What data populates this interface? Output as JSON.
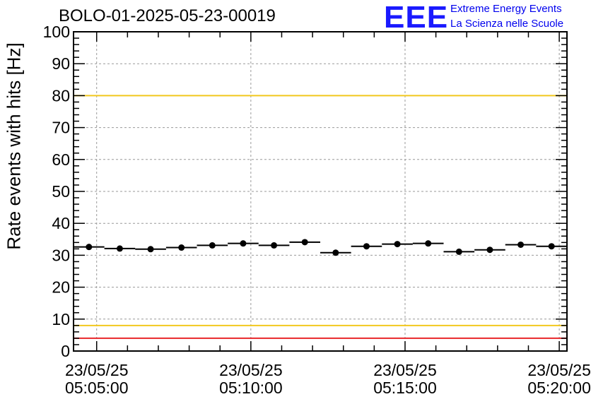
{
  "chart_data": {
    "type": "scatter",
    "title": "BOLO-01-2025-05-23-00019",
    "ylabel": "Rate events with hits [Hz]",
    "xlabel": "",
    "ylim": [
      0,
      100
    ],
    "yticks": [
      0,
      10,
      20,
      30,
      40,
      50,
      60,
      70,
      80,
      90,
      100
    ],
    "x_ticks_minutes": [
      0,
      5,
      10,
      15
    ],
    "x_tick_labels": [
      {
        "date": "23/05/25",
        "time": "05:05:00"
      },
      {
        "date": "23/05/25",
        "time": "05:10:00"
      },
      {
        "date": "23/05/25",
        "time": "05:15:00"
      },
      {
        "date": "23/05/25",
        "time": "05:20:00"
      }
    ],
    "xlim_minutes": [
      -0.75,
      15.25
    ],
    "bin_width_minutes": 1,
    "grid": true,
    "series": [
      {
        "name": "rate",
        "x_minutes": [
          -0.25,
          0.75,
          1.75,
          2.75,
          3.75,
          4.75,
          5.75,
          6.75,
          7.75,
          8.75,
          9.75,
          10.75,
          11.75,
          12.75,
          13.75,
          14.75
        ],
        "values": [
          32.6,
          32.1,
          31.9,
          32.4,
          33.1,
          33.7,
          33.1,
          34.1,
          30.8,
          32.8,
          33.5,
          33.7,
          31.1,
          31.7,
          33.3,
          32.8
        ]
      }
    ],
    "reference_lines": [
      {
        "value": 100,
        "color": "#e8262a"
      },
      {
        "value": 80,
        "color": "#f2c81e"
      },
      {
        "value": 8,
        "color": "#f2c81e"
      },
      {
        "value": 4,
        "color": "#e8262a"
      }
    ]
  },
  "logo": {
    "mark": "EEE",
    "line1": "Extreme Energy Events",
    "line2": "La Scienza nelle Scuole"
  }
}
